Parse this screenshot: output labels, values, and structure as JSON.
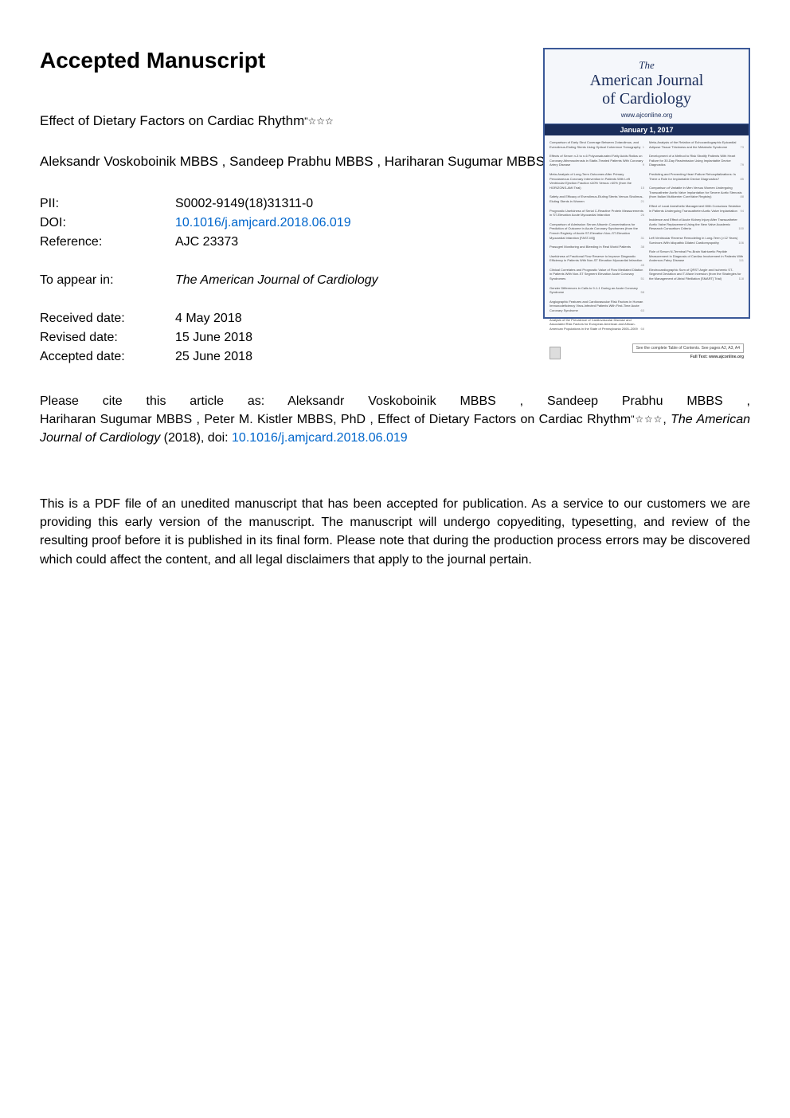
{
  "page": {
    "heading": "Accepted Manuscript"
  },
  "article": {
    "title": "Effect of Dietary Factors on Cardiac Rhythm",
    "title_marks": "☆☆☆",
    "authors": "Aleksandr Voskoboinik MBBS ,  Sandeep Prabhu MBBS ,  Hariharan Sugumar MBBS ,  Peter M. Kistler MBBS, PhD"
  },
  "identifiers": {
    "pii_label": "PII:",
    "pii_value": "S0002-9149(18)31311-0",
    "doi_label": "DOI:",
    "doi_value": "10.1016/j.amjcard.2018.06.019",
    "ref_label": "Reference:",
    "ref_value": "AJC 23373"
  },
  "appearance": {
    "label": "To appear in:",
    "journal": "The American Journal of Cardiology"
  },
  "dates": {
    "received_label": "Received date:",
    "received_value": "4 May 2018",
    "revised_label": "Revised date:",
    "revised_value": "15 June 2018",
    "accepted_label": "Accepted date:",
    "accepted_value": "25 June 2018"
  },
  "citation": {
    "line1": "Please      cite      this      article      as:        Aleksandr Voskoboinik MBBS ,      Sandeep Prabhu MBBS ,",
    "line2_prefix": " Hariharan Sugumar MBBS ,  Peter M. Kistler MBBS, PhD ,  Effect  of  Dietary  Factors  on  Cardiac Rhythm",
    "line2_marks": "☆☆☆",
    "line2_sep": ", ",
    "journal_italic": "The American Journal of Cardiology",
    "year": " (2018), doi: ",
    "doi_link": "10.1016/j.amjcard.2018.06.019"
  },
  "disclaimer": {
    "text": "This is a PDF file of an unedited manuscript that has been accepted for publication. As a service to our customers we are providing this early version of the manuscript. The manuscript will undergo copyediting, typesetting, and review of the resulting proof before it is published in its final form. Please note that during the production process errors may be discovered which could affect the content, and all legal disclaimers that apply to the journal pertain."
  },
  "cover": {
    "the": "The",
    "name_l1": "American Journal",
    "name_l2": "of Cardiology",
    "url": "www.ajconline.org",
    "date": "January 1, 2017",
    "left_items": [
      {
        "t": "Comparison of Early Strut Coverage Between Zotarolimus- and Everolimus-Eluting Stents Using Optical Coherence Tomography",
        "p": "1"
      },
      {
        "t": "Effects of Serum n-3 to n-6 Polyunsaturated Fatty Acids Ratios on Coronary Atherosclerosis in Statin-Treated Patients With Coronary Artery Disease",
        "p": "9"
      },
      {
        "t": "Meta-Analysis of Long-Term Outcomes After Primary Percutaneous Coronary Intervention in Patients With Left Ventricular Ejection Fraction ≤40% Versus >40% (from the HORIZONS-AMI Trial)",
        "p": "15"
      },
      {
        "t": "Safety and Efficacy of Everolimus-Eluting Stents Versus Sirolimus-Eluting Stents in Women",
        "p": "21"
      },
      {
        "t": "Prognostic Usefulness of Serial C-Reactive Protein Measurements in ST-Elevation Acute Myocardial Infarction",
        "p": "26"
      },
      {
        "t": "Comparison of Admission Serum Albumin Concentrations for Prediction of Outcome in Acute Coronary Syndromes (from the French Registry of Acute ST-Elevation Non–ST-Elevation Myocardial Infarction [FAST-MI])",
        "p": "31"
      },
      {
        "t": "Prasugrel Monitoring and Bleeding in Real World Patients",
        "p": "38"
      },
      {
        "t": "Usefulness of Fractional Flow Reserve to Improve Diagnostic Efficiency in Patients With Non-ST Elevation Myocardial Infarction",
        "p": "45"
      },
      {
        "t": "Clinical Correlates and Prognostic Value of Flow Mediated Dilation in Patients With Non-ST Segment Elevation Acute Coronary Syndromes",
        "p": "51"
      },
      {
        "t": "Gender Differences in Calls to 9-1-1 During an Acute Coronary Syndrome",
        "p": "58"
      },
      {
        "t": "Angiographic Features and Cardiovascular Risk Factors in Human Immunodeficiency Virus-Infected Patients With First-Time Acute Coronary Syndrome",
        "p": "63"
      },
      {
        "t": "Analysis of the Prevalence of Cardiovascular Disease and Associated Risk Factors for European-American and African-American Populations in the State of Pennsylvania 2005–2009",
        "p": "68"
      }
    ],
    "right_items": [
      {
        "t": "Meta-Analysis of the Relation of Echocardiographic Epicardial Adipose Tissue Thickness and the Metabolic Syndrome",
        "p": "73"
      },
      {
        "t": "Development of a Method to Risk Stratify Patients With Heart Failure for 30-Day Readmission Using Implantable Device Diagnostics",
        "p": "79"
      },
      {
        "t": "Predicting and Preventing Heart Failure Rehospitalizations: Is There a Role for Implantable Device Diagnostics?",
        "p": "85"
      },
      {
        "t": "Comparison of Variable in Men Versus Women Undergoing Transcatheter Aortic Valve Implantation for Severe Aortic Stenosis (from Italian Multicenter CoreValve Registry)",
        "p": "88"
      },
      {
        "t": "Effect of Local Anesthetic Management With Conscious Sedation in Patients Undergoing Transcatheter Aortic Valve Implantation",
        "p": "94"
      },
      {
        "t": "Incidence and Effect of Acute Kidney Injury After Transcatheter Aortic Valve Replacement Using the New Valve Academic Research Consortium Criteria",
        "p": "100"
      },
      {
        "t": "Left Ventricular Reverse Remodeling in Long-Term (>12 Years) Survivors With Idiopathic Dilated Cardiomyopathy",
        "p": "106"
      },
      {
        "t": "Role of Serum N-Terminal Pro-Brain Natriuretic Peptide Measurement in Diagnosis of Cardiac Involvement in Patients With Anderson-Fabry Disease",
        "p": "111"
      },
      {
        "t": "Electrocardiographic Sum of QRST Angle and Ischemic ST-Segment Deviation and T-Wave Inversion (from the Strategies for the Management of Atrial Fibrillation [SMART] Trial)",
        "p": "118"
      }
    ],
    "foot1": "See the complete Table of Contents. See pages A2, A3, A4",
    "foot2": "Full Text: www.ajconline.org"
  },
  "colors": {
    "link": "#0066cc",
    "cover_border": "#3b5998",
    "cover_header_text": "#1a2d5a",
    "cover_date_bg": "#1a2d5a",
    "page_bg": "#ffffff"
  },
  "typography": {
    "body_font": "Arial, Helvetica, sans-serif",
    "heading_size_pt": 21,
    "body_size_pt": 12,
    "cover_title_font": "Times New Roman, serif"
  }
}
